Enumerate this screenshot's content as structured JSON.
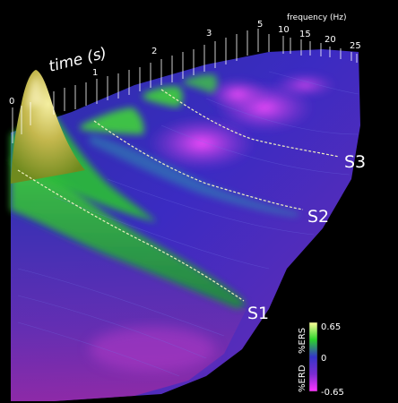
{
  "axes": {
    "time": {
      "label": "time (s)",
      "ticks": [
        "0",
        "1",
        "2",
        "3"
      ]
    },
    "frequency": {
      "label": "frequency (Hz)",
      "ticks": [
        "5",
        "10",
        "15",
        "20",
        "25"
      ]
    }
  },
  "streams": [
    "S1",
    "S2",
    "S3"
  ],
  "colorbar": {
    "max": "0.65",
    "mid": "0",
    "min": "-0.65",
    "label_top": "%ERS",
    "label_bottom": "%ERD",
    "colors": [
      "#ffff99",
      "#2bd32b",
      "#3535c8",
      "#7a2cd0",
      "#ff33ff"
    ]
  },
  "colors": {
    "background": "#000000",
    "peak": "#d8d070",
    "ers": "#2bc42b",
    "neutral": "#3a2ccf",
    "erd": "#ff44ff"
  }
}
